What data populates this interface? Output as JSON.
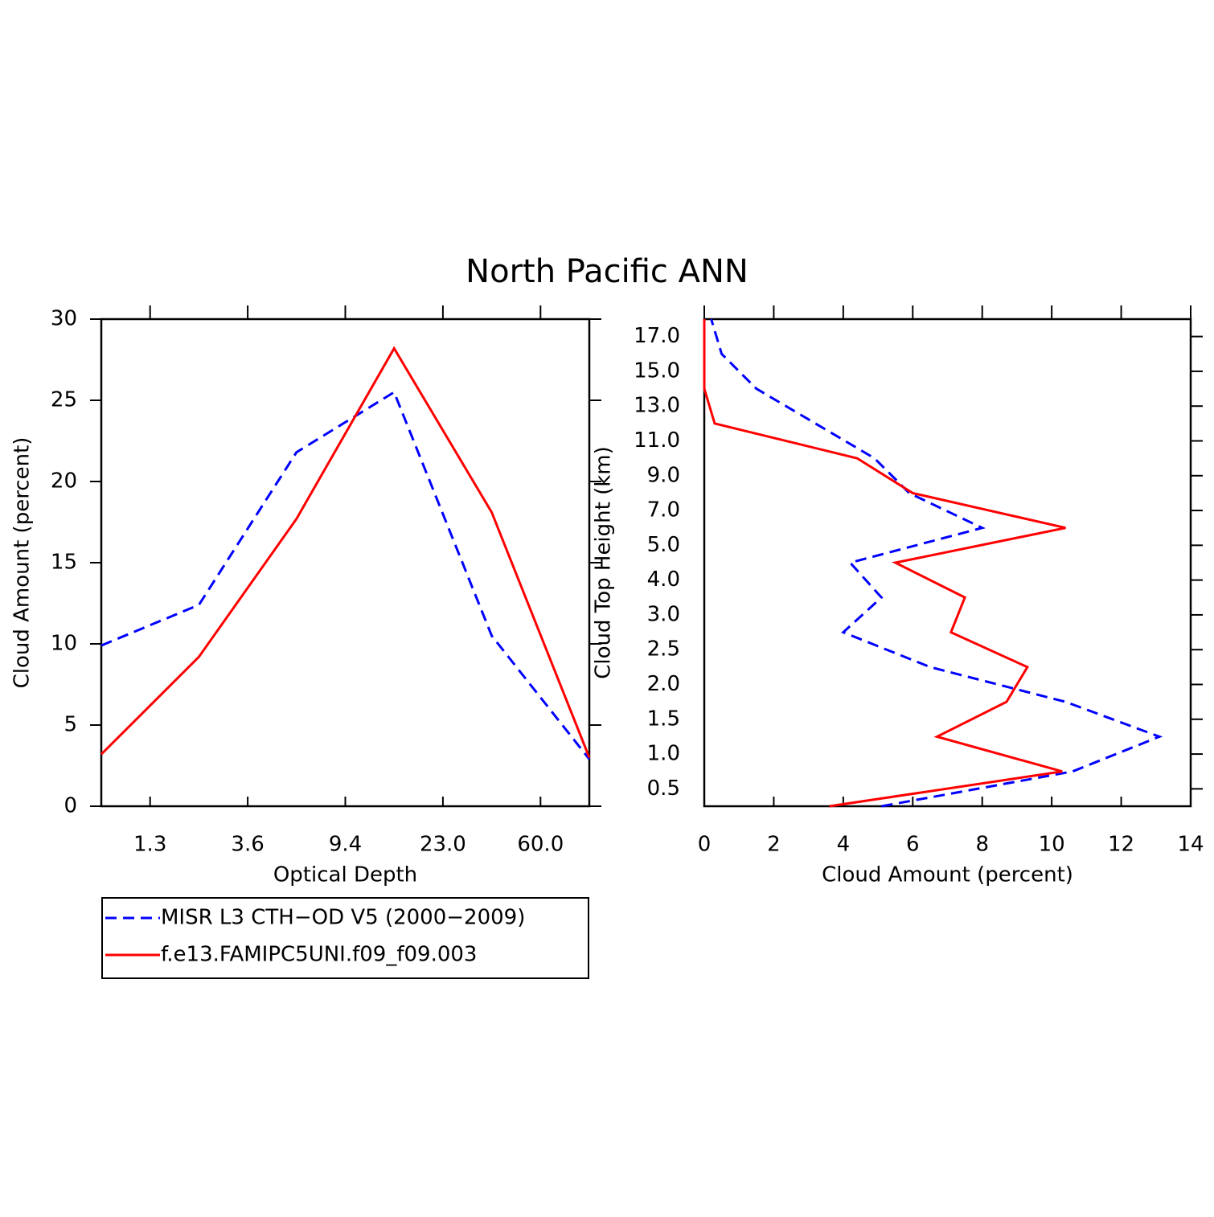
{
  "title": "North Pacific ANN",
  "chart_data": [
    {
      "type": "line",
      "orientation": "vertical",
      "x_label": "Optical Depth",
      "y_label": "Cloud Amount (percent)",
      "x": [
        0,
        1,
        2,
        3,
        4,
        5
      ],
      "xlim": [
        0,
        5
      ],
      "xticks": [
        {
          "value": 0.5,
          "label": "1.3"
        },
        {
          "value": 1.5,
          "label": "3.6"
        },
        {
          "value": 2.5,
          "label": "9.4"
        },
        {
          "value": 3.5,
          "label": "23.0"
        },
        {
          "value": 4.5,
          "label": "60.0"
        }
      ],
      "ylim": [
        0,
        30
      ],
      "yticks": [
        0,
        5,
        10,
        15,
        20,
        25,
        30
      ],
      "legend": "below",
      "series": [
        {
          "name": "MISR L3 CTH−OD V5 (2000−2009)",
          "color": "#0000ff",
          "style": "dashed",
          "values": [
            9.9,
            12.4,
            21.8,
            25.5,
            10.5,
            2.9
          ]
        },
        {
          "name": "f.e13.FAMIPC5UNI.f09_f09.003",
          "color": "#ff0000",
          "style": "solid",
          "values": [
            3.2,
            9.2,
            17.7,
            28.2,
            18.1,
            3.0
          ]
        }
      ]
    },
    {
      "type": "line",
      "orientation": "horizontal",
      "x_label": "Cloud Amount (percent)",
      "y_label": "Cloud Top Height (km)",
      "y": [
        0,
        1,
        2,
        3,
        4,
        5,
        6,
        7,
        8,
        9,
        10,
        11,
        12,
        13,
        14
      ],
      "ylim": [
        0,
        14
      ],
      "yticks": [
        {
          "value": 0.5,
          "label": "0.5"
        },
        {
          "value": 1.5,
          "label": "1.0"
        },
        {
          "value": 2.5,
          "label": "1.5"
        },
        {
          "value": 3.5,
          "label": "2.0"
        },
        {
          "value": 4.5,
          "label": "2.5"
        },
        {
          "value": 5.5,
          "label": "3.0"
        },
        {
          "value": 6.5,
          "label": "4.0"
        },
        {
          "value": 7.5,
          "label": "5.0"
        },
        {
          "value": 8.5,
          "label": "7.0"
        },
        {
          "value": 9.5,
          "label": "9.0"
        },
        {
          "value": 10.5,
          "label": "11.0"
        },
        {
          "value": 11.5,
          "label": "13.0"
        },
        {
          "value": 12.5,
          "label": "15.0"
        },
        {
          "value": 13.5,
          "label": "17.0"
        }
      ],
      "xlim": [
        0,
        14
      ],
      "xticks": [
        0,
        2,
        4,
        6,
        8,
        10,
        12,
        14
      ],
      "series": [
        {
          "color": "#0000ff",
          "style": "dashed",
          "values": [
            5.1,
            10.6,
            13.1,
            10.4,
            6.5,
            4.0,
            5.1,
            4.2,
            8.0,
            5.9,
            4.9,
            3.2,
            1.5,
            0.5,
            0.2
          ]
        },
        {
          "color": "#ff0000",
          "style": "solid",
          "values": [
            3.6,
            10.3,
            6.7,
            8.7,
            9.3,
            7.1,
            7.5,
            5.5,
            10.4,
            6.0,
            4.4,
            0.3,
            0.0,
            0.0,
            0.0
          ]
        }
      ]
    }
  ]
}
